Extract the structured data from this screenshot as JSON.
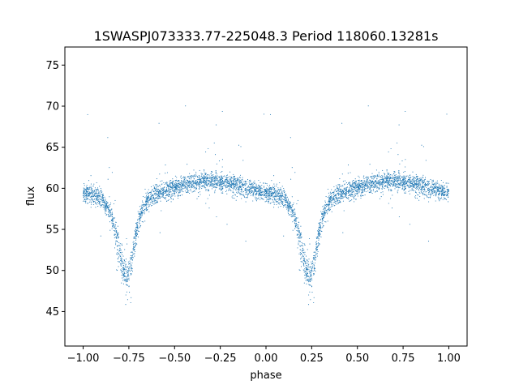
{
  "chart_data": {
    "type": "scatter",
    "title": "1SWASPJ073333.77-225048.3 Period 118060.13281s",
    "xlabel": "phase",
    "ylabel": "flux",
    "xlim": [
      -1.1,
      1.1
    ],
    "ylim": [
      40.8,
      77.2
    ],
    "xticks": [
      -1.0,
      -0.75,
      -0.5,
      -0.25,
      0.0,
      0.25,
      0.5,
      0.75,
      1.0
    ],
    "xtick_labels": [
      "−1.00",
      "−0.75",
      "−0.50",
      "−0.25",
      "0.00",
      "0.25",
      "0.50",
      "0.75",
      "1.00"
    ],
    "yticks": [
      45,
      50,
      55,
      60,
      65,
      70,
      75
    ],
    "ytick_labels": [
      "45",
      "50",
      "55",
      "60",
      "65",
      "70",
      "75"
    ],
    "grid": false,
    "legend": "none",
    "marker_color": "#1f77b4",
    "series": [
      {
        "values_description": "folded light curve, repeated for phase -1..0 and 0..1",
        "curve_x": [
          0.0,
          0.05,
          0.1,
          0.15,
          0.18,
          0.2,
          0.22,
          0.24,
          0.26,
          0.28,
          0.3,
          0.33,
          0.36,
          0.4,
          0.45,
          0.5,
          0.55,
          0.6,
          0.65,
          0.7,
          0.75,
          0.8,
          0.85,
          0.9,
          0.95,
          1.0
        ],
        "curve_y": [
          59.5,
          59.2,
          58.8,
          57.0,
          54.5,
          52.0,
          50.0,
          49.0,
          50.5,
          53.0,
          55.5,
          57.8,
          58.8,
          59.3,
          59.7,
          60.1,
          60.4,
          60.7,
          60.9,
          61.0,
          60.8,
          60.6,
          60.3,
          60.0,
          59.7,
          59.5
        ]
      }
    ]
  }
}
